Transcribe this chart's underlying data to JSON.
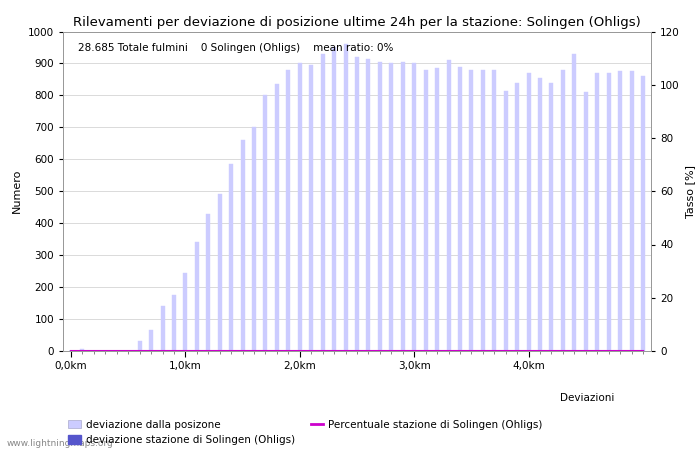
{
  "title": "Rilevamenti per deviazione di posizione ultime 24h per la stazione: Solingen (Ohligs)",
  "ylabel_left": "Numero",
  "ylabel_right": "Tasso [%]",
  "info_text": "28.685 Totale fulmini    0 Solingen (Ohligs)    mean ratio: 0%",
  "bar_color_light": "#ccccff",
  "bar_color_dark": "#5555cc",
  "line_color": "#cc00cc",
  "background_color": "#ffffff",
  "grid_color": "#cccccc",
  "ylim_left": [
    0,
    1000
  ],
  "ylim_right": [
    0,
    120
  ],
  "yticks_left": [
    0,
    100,
    200,
    300,
    400,
    500,
    600,
    700,
    800,
    900,
    1000
  ],
  "yticks_right": [
    0,
    20,
    40,
    60,
    80,
    100,
    120
  ],
  "xtick_labels": [
    "0,0km",
    "1,0km",
    "2,0km",
    "3,0km",
    "4,0km"
  ],
  "xtick_positions": [
    0,
    10,
    20,
    30,
    40
  ],
  "bar_values": [
    0,
    5,
    0,
    0,
    0,
    0,
    30,
    65,
    140,
    175,
    245,
    340,
    430,
    490,
    585,
    660,
    700,
    800,
    835,
    880,
    900,
    895,
    930,
    950,
    960,
    920,
    915,
    905,
    900,
    905,
    900,
    880,
    885,
    910,
    890,
    880,
    880,
    880,
    815,
    840,
    870,
    855,
    840,
    880,
    930,
    810,
    870,
    870,
    875,
    875,
    860
  ],
  "station_bar_values": [
    0,
    0,
    0,
    0,
    0,
    0,
    0,
    0,
    0,
    0,
    0,
    0,
    0,
    0,
    0,
    0,
    0,
    0,
    0,
    0,
    0,
    0,
    0,
    0,
    0,
    0,
    0,
    0,
    0,
    0,
    0,
    0,
    0,
    0,
    0,
    0,
    0,
    0,
    0,
    0,
    0,
    0,
    0,
    0,
    0,
    0,
    0,
    0,
    0,
    0,
    0
  ],
  "percentage_line": [
    0,
    0,
    0,
    0,
    0,
    0,
    0,
    0,
    0,
    0,
    0,
    0,
    0,
    0,
    0,
    0,
    0,
    0,
    0,
    0,
    0,
    0,
    0,
    0,
    0,
    0,
    0,
    0,
    0,
    0,
    0,
    0,
    0,
    0,
    0,
    0,
    0,
    0,
    0,
    0,
    0,
    0,
    0,
    0,
    0,
    0,
    0,
    0,
    0,
    0,
    0
  ],
  "n_bars": 51,
  "bar_width": 0.35,
  "figsize": [
    7.0,
    4.5
  ],
  "dpi": 100,
  "title_fontsize": 9.5,
  "axis_fontsize": 8,
  "tick_fontsize": 7.5,
  "info_fontsize": 7.5,
  "legend_fontsize": 7.5,
  "watermark": "www.lightningmaps.org",
  "legend_label_1": "deviazione dalla posizone",
  "legend_label_2": "deviazione stazione di Solingen (Ohligs)",
  "legend_label_3": "Percentuale stazione di Solingen (Ohligs)",
  "legend_label_deviazioni": "Deviazioni"
}
